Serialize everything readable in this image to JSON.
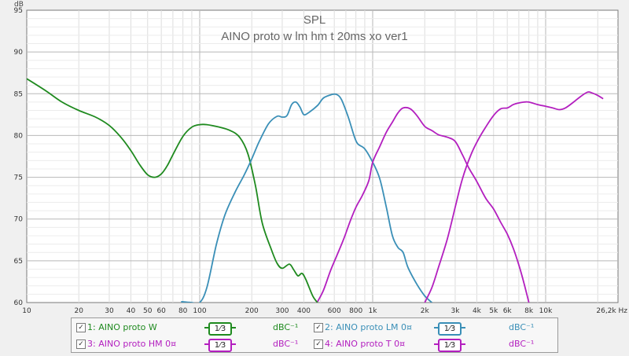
{
  "chart_data": {
    "type": "line",
    "title": "SPL",
    "subtitle": "AINO proto w lm hm t 20ms xo ver1",
    "xscale": "log",
    "xlim": [
      10,
      26200
    ],
    "ylim": [
      60,
      95
    ],
    "ylabel": "dB",
    "xunit": "Hz",
    "grid": true,
    "x_ticks": [
      {
        "v": 10,
        "label": "10"
      },
      {
        "v": 20,
        "label": "20"
      },
      {
        "v": 30,
        "label": "30"
      },
      {
        "v": 40,
        "label": "40"
      },
      {
        "v": 50,
        "label": "50"
      },
      {
        "v": 60,
        "label": "60"
      },
      {
        "v": 80,
        "label": "80"
      },
      {
        "v": 100,
        "label": "100"
      },
      {
        "v": 200,
        "label": "200"
      },
      {
        "v": 300,
        "label": "300"
      },
      {
        "v": 400,
        "label": "400"
      },
      {
        "v": 600,
        "label": "600"
      },
      {
        "v": 800,
        "label": "800"
      },
      {
        "v": 1000,
        "label": "1k"
      },
      {
        "v": 2000,
        "label": "2k"
      },
      {
        "v": 3000,
        "label": "3k"
      },
      {
        "v": 4000,
        "label": "4k"
      },
      {
        "v": 5000,
        "label": "5k"
      },
      {
        "v": 6000,
        "label": "6k"
      },
      {
        "v": 8000,
        "label": "8k"
      },
      {
        "v": 10000,
        "label": "10k"
      },
      {
        "v": 26200,
        "label": "26,2k Hz"
      }
    ],
    "y_ticks": [
      60,
      65,
      70,
      75,
      80,
      85,
      90,
      95
    ],
    "series": [
      {
        "name": "1: AINO proto W",
        "color": "#1f8a1f",
        "points": [
          [
            10,
            86.8
          ],
          [
            13,
            85.3
          ],
          [
            16,
            84.0
          ],
          [
            20,
            83.0
          ],
          [
            25,
            82.2
          ],
          [
            30,
            81.2
          ],
          [
            35,
            79.8
          ],
          [
            40,
            78.2
          ],
          [
            45,
            76.5
          ],
          [
            50,
            75.3
          ],
          [
            55,
            75.0
          ],
          [
            60,
            75.4
          ],
          [
            65,
            76.4
          ],
          [
            70,
            77.7
          ],
          [
            80,
            79.9
          ],
          [
            90,
            81.0
          ],
          [
            100,
            81.3
          ],
          [
            110,
            81.3
          ],
          [
            130,
            81.0
          ],
          [
            150,
            80.6
          ],
          [
            170,
            79.8
          ],
          [
            190,
            77.8
          ],
          [
            210,
            74.0
          ],
          [
            230,
            69.5
          ],
          [
            260,
            66.3
          ],
          [
            280,
            64.7
          ],
          [
            300,
            64.1
          ],
          [
            330,
            64.6
          ],
          [
            350,
            63.9
          ],
          [
            370,
            63.2
          ],
          [
            390,
            63.5
          ],
          [
            410,
            62.8
          ],
          [
            450,
            60.8
          ],
          [
            480,
            60.0
          ]
        ]
      },
      {
        "name": "2: AINO proto LM 0¤",
        "color": "#3a8fb7",
        "points": [
          [
            78,
            60.1
          ],
          [
            90,
            60.0
          ],
          [
            100,
            60.0
          ],
          [
            110,
            61.8
          ],
          [
            125,
            67.0
          ],
          [
            140,
            70.5
          ],
          [
            160,
            73.2
          ],
          [
            180,
            75.2
          ],
          [
            200,
            77.2
          ],
          [
            220,
            79.2
          ],
          [
            250,
            81.4
          ],
          [
            280,
            82.3
          ],
          [
            300,
            82.2
          ],
          [
            320,
            82.4
          ],
          [
            340,
            83.7
          ],
          [
            360,
            84.0
          ],
          [
            380,
            83.4
          ],
          [
            400,
            82.5
          ],
          [
            430,
            82.8
          ],
          [
            480,
            83.6
          ],
          [
            520,
            84.5
          ],
          [
            580,
            84.9
          ],
          [
            620,
            84.9
          ],
          [
            660,
            84.3
          ],
          [
            720,
            82.3
          ],
          [
            780,
            80.0
          ],
          [
            820,
            79.0
          ],
          [
            900,
            78.4
          ],
          [
            1000,
            76.8
          ],
          [
            1100,
            74.8
          ],
          [
            1200,
            71.4
          ],
          [
            1300,
            68.0
          ],
          [
            1400,
            66.6
          ],
          [
            1500,
            66.0
          ],
          [
            1600,
            64.2
          ],
          [
            1800,
            62.2
          ],
          [
            2000,
            60.8
          ],
          [
            2200,
            60.0
          ]
        ]
      },
      {
        "name": "3: AINO proto HM 0¤",
        "color": "#b31fbf",
        "points": [
          [
            480,
            60.1
          ],
          [
            520,
            61.5
          ],
          [
            570,
            63.8
          ],
          [
            620,
            65.6
          ],
          [
            680,
            67.6
          ],
          [
            740,
            69.7
          ],
          [
            800,
            71.4
          ],
          [
            870,
            72.8
          ],
          [
            950,
            74.6
          ],
          [
            1000,
            76.8
          ],
          [
            1100,
            78.7
          ],
          [
            1200,
            80.4
          ],
          [
            1300,
            81.6
          ],
          [
            1400,
            82.7
          ],
          [
            1500,
            83.3
          ],
          [
            1650,
            83.2
          ],
          [
            1800,
            82.4
          ],
          [
            2000,
            81.1
          ],
          [
            2200,
            80.6
          ],
          [
            2400,
            80.1
          ],
          [
            2700,
            79.8
          ],
          [
            3000,
            79.3
          ],
          [
            3300,
            77.7
          ],
          [
            3600,
            76.1
          ],
          [
            4000,
            74.5
          ],
          [
            4500,
            72.5
          ],
          [
            5000,
            71.2
          ],
          [
            5500,
            69.6
          ],
          [
            6000,
            68.2
          ],
          [
            6500,
            66.5
          ],
          [
            7000,
            64.5
          ],
          [
            7500,
            62.3
          ],
          [
            8000,
            60.0
          ]
        ]
      },
      {
        "name": "4: AINO proto T 0¤",
        "color": "#b31fbf",
        "points": [
          [
            2000,
            60.0
          ],
          [
            2200,
            61.8
          ],
          [
            2400,
            64.2
          ],
          [
            2700,
            67.6
          ],
          [
            3000,
            71.4
          ],
          [
            3300,
            74.8
          ],
          [
            3700,
            77.7
          ],
          [
            4100,
            79.6
          ],
          [
            4500,
            81.0
          ],
          [
            5000,
            82.4
          ],
          [
            5500,
            83.2
          ],
          [
            6000,
            83.3
          ],
          [
            6500,
            83.7
          ],
          [
            7000,
            83.9
          ],
          [
            7500,
            84.0
          ],
          [
            8000,
            84.0
          ],
          [
            9000,
            83.7
          ],
          [
            10000,
            83.5
          ],
          [
            11000,
            83.3
          ],
          [
            12000,
            83.1
          ],
          [
            13000,
            83.3
          ],
          [
            14500,
            84.0
          ],
          [
            16000,
            84.7
          ],
          [
            17500,
            85.2
          ],
          [
            18500,
            85.1
          ],
          [
            20000,
            84.8
          ],
          [
            21500,
            84.4
          ]
        ]
      }
    ]
  },
  "legend": {
    "items": [
      {
        "check": "✓",
        "label": "1: AINO proto W",
        "smooth": "1⁄3",
        "unit": "dBC⁻¹"
      },
      {
        "check": "✓",
        "label": "2: AINO proto LM 0¤",
        "smooth": "1⁄3",
        "unit": "dBC⁻¹"
      },
      {
        "check": "✓",
        "label": "3: AINO proto HM 0¤",
        "smooth": "1⁄3",
        "unit": "dBC⁻¹"
      },
      {
        "check": "✓",
        "label": "4: AINO proto T 0¤",
        "smooth": "1⁄3",
        "unit": "dBC⁻¹"
      }
    ]
  }
}
